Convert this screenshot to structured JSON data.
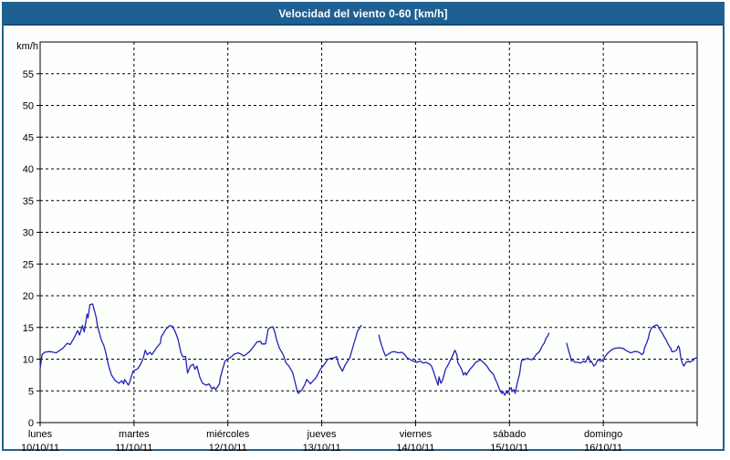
{
  "window": {
    "title": "Velocidad del viento 0-60 [km/h]"
  },
  "colors": {
    "titlebar_bg": "#1e6093",
    "titlebar_border": "#154a72",
    "frame_border": "#24618e",
    "page_bg": "#fdfffd",
    "grid": "#000000",
    "axis": "#000000",
    "line": "#2222b8",
    "title_text": "#ffffff",
    "label_text": "#000000"
  },
  "chart_data": {
    "type": "line",
    "title": "Velocidad del viento 0-60 [km/h]",
    "ylabel": "km/h",
    "xlabel": "",
    "ylim": [
      0,
      60
    ],
    "yticks": [
      0,
      5,
      10,
      15,
      20,
      25,
      30,
      35,
      40,
      45,
      50,
      55
    ],
    "grid": "dashed",
    "legend": "none",
    "xlim_days": [
      0,
      7
    ],
    "x_days": [
      {
        "name": "lunes",
        "date": "10/10/11"
      },
      {
        "name": "martes",
        "date": "11/10/11"
      },
      {
        "name": "miércoles",
        "date": "12/10/11"
      },
      {
        "name": "jueves",
        "date": "13/10/11"
      },
      {
        "name": "viernes",
        "date": "14/10/11"
      },
      {
        "name": "sábado",
        "date": "15/10/11"
      },
      {
        "name": "domingo",
        "date": "16/10/11"
      }
    ],
    "series": [
      {
        "name": "velocidad del viento",
        "units": "km/h",
        "color": "#2222b8",
        "segments": [
          [
            [
              0.0,
              8.5
            ],
            [
              0.02,
              10.7
            ],
            [
              0.05,
              11.1
            ],
            [
              0.1,
              11.2
            ],
            [
              0.14,
              11.1
            ],
            [
              0.17,
              11.0
            ],
            [
              0.24,
              11.7
            ],
            [
              0.29,
              12.5
            ],
            [
              0.32,
              12.3
            ],
            [
              0.36,
              13.3
            ],
            [
              0.4,
              14.5
            ],
            [
              0.42,
              13.8
            ],
            [
              0.45,
              15.3
            ],
            [
              0.47,
              14.3
            ],
            [
              0.5,
              17.1
            ],
            [
              0.51,
              16.5
            ],
            [
              0.53,
              18.6
            ],
            [
              0.56,
              18.7
            ],
            [
              0.6,
              16.4
            ],
            [
              0.61,
              15.3
            ],
            [
              0.65,
              13.1
            ],
            [
              0.68,
              12.1
            ],
            [
              0.7,
              11.0
            ],
            [
              0.73,
              8.9
            ],
            [
              0.76,
              7.5
            ],
            [
              0.8,
              6.6
            ],
            [
              0.84,
              6.2
            ],
            [
              0.87,
              6.6
            ],
            [
              0.89,
              6.1
            ],
            [
              0.9,
              6.8
            ],
            [
              0.94,
              5.9
            ],
            [
              0.95,
              6.2
            ],
            [
              0.99,
              8.1
            ],
            [
              1.04,
              8.5
            ],
            [
              1.07,
              9.2
            ],
            [
              1.1,
              10.2
            ],
            [
              1.12,
              11.4
            ],
            [
              1.14,
              10.7
            ],
            [
              1.17,
              11.1
            ],
            [
              1.19,
              10.7
            ],
            [
              1.24,
              11.8
            ],
            [
              1.28,
              12.5
            ],
            [
              1.29,
              13.5
            ],
            [
              1.34,
              14.7
            ],
            [
              1.38,
              15.3
            ],
            [
              1.41,
              15.2
            ],
            [
              1.44,
              14.3
            ],
            [
              1.47,
              13.1
            ],
            [
              1.5,
              11.0
            ],
            [
              1.52,
              10.4
            ],
            [
              1.55,
              10.4
            ],
            [
              1.57,
              7.8
            ],
            [
              1.6,
              8.9
            ],
            [
              1.63,
              9.2
            ],
            [
              1.65,
              8.4
            ],
            [
              1.67,
              8.9
            ],
            [
              1.7,
              7.2
            ],
            [
              1.73,
              6.2
            ],
            [
              1.77,
              5.9
            ],
            [
              1.8,
              6.1
            ],
            [
              1.83,
              5.3
            ],
            [
              1.85,
              5.6
            ],
            [
              1.87,
              5.2
            ],
            [
              1.91,
              6.1
            ],
            [
              1.92,
              7.1
            ],
            [
              1.94,
              8.2
            ],
            [
              1.96,
              9.2
            ],
            [
              1.97,
              9.7
            ],
            [
              2.01,
              10.1
            ],
            [
              2.04,
              10.4
            ],
            [
              2.07,
              10.8
            ],
            [
              2.11,
              11.0
            ],
            [
              2.14,
              10.8
            ],
            [
              2.17,
              10.5
            ],
            [
              2.2,
              10.8
            ],
            [
              2.23,
              11.2
            ],
            [
              2.28,
              12.1
            ],
            [
              2.31,
              12.7
            ],
            [
              2.35,
              12.8
            ],
            [
              2.36,
              12.4
            ],
            [
              2.4,
              12.4
            ],
            [
              2.41,
              13.1
            ],
            [
              2.43,
              14.7
            ],
            [
              2.45,
              15.0
            ],
            [
              2.48,
              15.1
            ],
            [
              2.5,
              14.3
            ],
            [
              2.52,
              13.0
            ],
            [
              2.55,
              11.7
            ],
            [
              2.59,
              10.7
            ],
            [
              2.62,
              9.4
            ],
            [
              2.65,
              8.9
            ],
            [
              2.69,
              7.9
            ],
            [
              2.72,
              6.1
            ],
            [
              2.74,
              4.9
            ],
            [
              2.75,
              4.6
            ],
            [
              2.79,
              5.2
            ],
            [
              2.82,
              6.0
            ],
            [
              2.84,
              6.8
            ],
            [
              2.88,
              6.1
            ],
            [
              2.91,
              6.6
            ],
            [
              2.94,
              7.1
            ],
            [
              2.99,
              8.5
            ],
            [
              3.03,
              9.2
            ],
            [
              3.06,
              9.9
            ],
            [
              3.09,
              10.1
            ],
            [
              3.13,
              10.2
            ],
            [
              3.16,
              10.4
            ],
            [
              3.18,
              9.2
            ],
            [
              3.22,
              8.1
            ],
            [
              3.25,
              9.1
            ],
            [
              3.28,
              9.8
            ],
            [
              3.3,
              10.2
            ],
            [
              3.33,
              11.8
            ],
            [
              3.35,
              12.8
            ],
            [
              3.37,
              13.8
            ],
            [
              3.38,
              14.4
            ],
            [
              3.4,
              14.8
            ],
            [
              3.42,
              15.3
            ]
          ],
          [
            [
              3.61,
              13.8
            ],
            [
              3.62,
              13.1
            ],
            [
              3.64,
              12.1
            ],
            [
              3.66,
              11.2
            ],
            [
              3.68,
              10.5
            ],
            [
              3.71,
              10.8
            ],
            [
              3.74,
              11.1
            ],
            [
              3.77,
              11.2
            ],
            [
              3.82,
              11.0
            ],
            [
              3.85,
              11.1
            ],
            [
              3.88,
              10.8
            ],
            [
              3.91,
              10.2
            ],
            [
              3.96,
              9.8
            ],
            [
              4.01,
              9.5
            ],
            [
              4.05,
              9.7
            ],
            [
              4.08,
              9.4
            ],
            [
              4.11,
              9.5
            ],
            [
              4.15,
              9.2
            ],
            [
              4.17,
              8.9
            ],
            [
              4.19,
              8.1
            ],
            [
              4.2,
              7.6
            ],
            [
              4.24,
              5.9
            ],
            [
              4.25,
              7.2
            ],
            [
              4.27,
              6.2
            ],
            [
              4.29,
              6.8
            ],
            [
              4.32,
              8.4
            ],
            [
              4.35,
              9.2
            ],
            [
              4.39,
              10.4
            ],
            [
              4.42,
              11.4
            ],
            [
              4.44,
              10.7
            ],
            [
              4.45,
              9.5
            ],
            [
              4.49,
              8.4
            ],
            [
              4.51,
              7.5
            ],
            [
              4.53,
              7.9
            ],
            [
              4.54,
              7.5
            ],
            [
              4.58,
              8.4
            ],
            [
              4.61,
              8.9
            ],
            [
              4.64,
              9.5
            ],
            [
              4.68,
              9.8
            ],
            [
              4.69,
              9.9
            ],
            [
              4.73,
              9.4
            ],
            [
              4.76,
              8.9
            ],
            [
              4.79,
              8.2
            ],
            [
              4.83,
              7.6
            ],
            [
              4.85,
              6.8
            ],
            [
              4.87,
              6.2
            ],
            [
              4.9,
              5.0
            ],
            [
              4.92,
              4.6
            ],
            [
              4.93,
              4.9
            ],
            [
              4.95,
              4.3
            ],
            [
              4.97,
              4.9
            ],
            [
              4.98,
              4.6
            ],
            [
              5.0,
              5.2
            ],
            [
              5.02,
              5.5
            ],
            [
              5.03,
              4.9
            ],
            [
              5.05,
              5.2
            ],
            [
              5.06,
              4.6
            ],
            [
              5.07,
              5.3
            ],
            [
              5.09,
              6.6
            ],
            [
              5.11,
              7.8
            ],
            [
              5.12,
              8.9
            ],
            [
              5.13,
              9.8
            ],
            [
              5.15,
              9.9
            ],
            [
              5.19,
              10.1
            ],
            [
              5.24,
              9.9
            ],
            [
              5.26,
              10.2
            ],
            [
              5.29,
              10.8
            ],
            [
              5.32,
              11.2
            ],
            [
              5.35,
              12.1
            ],
            [
              5.37,
              12.5
            ],
            [
              5.39,
              13.3
            ],
            [
              5.41,
              13.7
            ],
            [
              5.42,
              14.1
            ]
          ],
          [
            [
              5.61,
              12.5
            ],
            [
              5.63,
              11.4
            ],
            [
              5.65,
              10.4
            ],
            [
              5.66,
              9.7
            ],
            [
              5.68,
              9.8
            ],
            [
              5.7,
              9.5
            ],
            [
              5.73,
              9.5
            ],
            [
              5.76,
              9.4
            ],
            [
              5.79,
              9.7
            ],
            [
              5.81,
              9.5
            ],
            [
              5.83,
              10.2
            ],
            [
              5.84,
              10.5
            ],
            [
              5.86,
              9.5
            ],
            [
              5.87,
              9.7
            ],
            [
              5.9,
              8.9
            ],
            [
              5.92,
              9.2
            ],
            [
              5.94,
              9.9
            ],
            [
              5.97,
              9.7
            ],
            [
              5.99,
              9.8
            ],
            [
              6.02,
              10.4
            ],
            [
              6.05,
              11.0
            ],
            [
              6.09,
              11.5
            ],
            [
              6.12,
              11.7
            ],
            [
              6.17,
              11.8
            ],
            [
              6.21,
              11.7
            ],
            [
              6.24,
              11.4
            ],
            [
              6.28,
              11.1
            ],
            [
              6.29,
              11.0
            ],
            [
              6.33,
              11.2
            ],
            [
              6.36,
              11.2
            ],
            [
              6.39,
              11.0
            ],
            [
              6.41,
              10.7
            ],
            [
              6.43,
              11.0
            ],
            [
              6.44,
              11.8
            ],
            [
              6.46,
              12.5
            ],
            [
              6.48,
              13.3
            ],
            [
              6.49,
              14.0
            ],
            [
              6.5,
              14.5
            ],
            [
              6.52,
              15.0
            ],
            [
              6.55,
              15.3
            ],
            [
              6.57,
              15.4
            ],
            [
              6.58,
              15.3
            ],
            [
              6.6,
              14.7
            ],
            [
              6.62,
              14.3
            ],
            [
              6.65,
              13.5
            ],
            [
              6.67,
              13.0
            ],
            [
              6.7,
              12.1
            ],
            [
              6.72,
              11.7
            ],
            [
              6.73,
              11.2
            ],
            [
              6.75,
              11.2
            ],
            [
              6.78,
              11.4
            ],
            [
              6.8,
              12.1
            ],
            [
              6.81,
              11.8
            ],
            [
              6.83,
              9.9
            ],
            [
              6.85,
              9.1
            ],
            [
              6.86,
              8.9
            ],
            [
              6.88,
              9.5
            ],
            [
              6.91,
              9.7
            ],
            [
              6.92,
              9.5
            ],
            [
              6.94,
              9.7
            ],
            [
              6.96,
              9.8
            ],
            [
              6.97,
              10.1
            ],
            [
              7.0,
              10.2
            ]
          ]
        ]
      }
    ]
  }
}
